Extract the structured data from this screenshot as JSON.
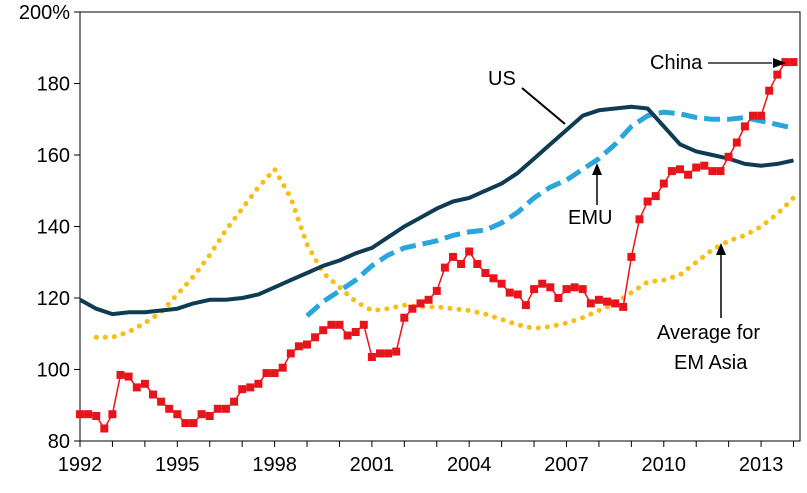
{
  "chart_data": {
    "type": "line",
    "x_tick_labels": [
      "1992",
      "1995",
      "1998",
      "2001",
      "2004",
      "2007",
      "2010",
      "2013"
    ],
    "y_tick_labels": [
      "80",
      "100",
      "120",
      "140",
      "160",
      "180",
      "200%"
    ],
    "xlim": [
      1992,
      2014.2
    ],
    "ylim": [
      80,
      200
    ],
    "grid": false,
    "series": [
      {
        "name": "US",
        "color": "#0f3b53",
        "style": "solid",
        "x": [
          1992,
          1992.5,
          1993,
          1993.5,
          1994,
          1994.5,
          1995,
          1995.5,
          1996,
          1996.5,
          1997,
          1997.5,
          1998,
          1998.5,
          1999,
          1999.5,
          2000,
          2000.5,
          2001,
          2001.5,
          2002,
          2002.5,
          2003,
          2003.5,
          2004,
          2004.5,
          2005,
          2005.5,
          2006,
          2006.5,
          2007,
          2007.5,
          2008,
          2008.5,
          2009,
          2009.5,
          2010,
          2010.5,
          2011,
          2011.5,
          2012,
          2012.5,
          2013,
          2013.5,
          2014
        ],
        "values": [
          119.5,
          117,
          115.5,
          116,
          116,
          116.5,
          117,
          118.5,
          119.5,
          119.5,
          120,
          121,
          123,
          125,
          127,
          129,
          130.5,
          132.5,
          134,
          137,
          140,
          142.5,
          145,
          147,
          148,
          150,
          152,
          155,
          159,
          163,
          167,
          171,
          172.5,
          173,
          173.5,
          173,
          168,
          163,
          161,
          160,
          159,
          157.5,
          157,
          157.5,
          158.5
        ]
      },
      {
        "name": "EMU",
        "color": "#2aa6dc",
        "style": "dashed",
        "x": [
          1999,
          1999.5,
          2000,
          2000.5,
          2001,
          2001.5,
          2002,
          2002.5,
          2003,
          2003.5,
          2004,
          2004.5,
          2005,
          2005.5,
          2006,
          2006.5,
          2007,
          2007.5,
          2008,
          2008.5,
          2009,
          2009.5,
          2010,
          2010.5,
          2011,
          2011.5,
          2012,
          2012.5,
          2013,
          2013.5,
          2014
        ],
        "values": [
          115,
          119,
          122,
          125,
          129,
          132,
          134,
          135,
          136,
          137.5,
          138.5,
          139,
          141,
          144,
          148,
          151,
          153,
          156,
          159,
          163,
          168,
          171,
          172,
          171.5,
          170.5,
          170,
          170,
          170.5,
          169.5,
          168.5,
          167.5
        ]
      },
      {
        "name": "China",
        "color": "#e8141b",
        "style": "solid-square-markers",
        "x": [
          1992,
          1992.25,
          1992.5,
          1992.75,
          1993,
          1993.25,
          1993.5,
          1993.75,
          1994,
          1994.25,
          1994.5,
          1994.75,
          1995,
          1995.25,
          1995.5,
          1995.75,
          1996,
          1996.25,
          1996.5,
          1996.75,
          1997,
          1997.25,
          1997.5,
          1997.75,
          1998,
          1998.25,
          1998.5,
          1998.75,
          1999,
          1999.25,
          1999.5,
          1999.75,
          2000,
          2000.25,
          2000.5,
          2000.75,
          2001,
          2001.25,
          2001.5,
          2001.75,
          2002,
          2002.25,
          2002.5,
          2002.75,
          2003,
          2003.25,
          2003.5,
          2003.75,
          2004,
          2004.25,
          2004.5,
          2004.75,
          2005,
          2005.25,
          2005.5,
          2005.75,
          2006,
          2006.25,
          2006.5,
          2006.75,
          2007,
          2007.25,
          2007.5,
          2007.75,
          2008,
          2008.25,
          2008.5,
          2008.75,
          2009,
          2009.25,
          2009.5,
          2009.75,
          2010,
          2010.25,
          2010.5,
          2010.75,
          2011,
          2011.25,
          2011.5,
          2011.75,
          2012,
          2012.25,
          2012.5,
          2012.75,
          2013,
          2013.25,
          2013.5,
          2013.75,
          2014
        ],
        "values": [
          87.5,
          87.5,
          87,
          83.5,
          87.5,
          98.5,
          98,
          95,
          96,
          93,
          91,
          89,
          87.5,
          85,
          85,
          87.5,
          87,
          89,
          89,
          91,
          94.5,
          95,
          96,
          99,
          99,
          100.5,
          104.5,
          106.5,
          107,
          109,
          111,
          112.5,
          112.5,
          109.5,
          110.5,
          112.5,
          103.5,
          104.5,
          104.5,
          105,
          114.5,
          117,
          118.5,
          119.5,
          122,
          128.5,
          131.5,
          129.5,
          133,
          129.5,
          127,
          125.5,
          124,
          121.5,
          121,
          118,
          122.5,
          124,
          123,
          120,
          122.5,
          123,
          122.5,
          118.5,
          119.5,
          119,
          118.5,
          117.5,
          131.5,
          142,
          147,
          148.5,
          152,
          155.5,
          156,
          154.5,
          156.5,
          157,
          155.5,
          155.5,
          159.5,
          163.5,
          168,
          171,
          171,
          178,
          182.5,
          186,
          186
        ]
      },
      {
        "name": "Average for EM Asia",
        "color": "#f5bf17",
        "style": "dotted",
        "x": [
          1992.5,
          1993,
          1993.5,
          1994,
          1994.5,
          1995,
          1995.5,
          1996,
          1996.5,
          1997,
          1997.5,
          1998,
          1998.5,
          1999,
          1999.5,
          2000,
          2000.5,
          2001,
          2001.5,
          2002,
          2002.5,
          2003,
          2003.5,
          2004,
          2004.5,
          2005,
          2005.5,
          2006,
          2006.5,
          2007,
          2007.5,
          2008,
          2008.5,
          2009,
          2009.5,
          2010,
          2010.5,
          2011,
          2011.5,
          2012,
          2012.5,
          2013,
          2013.5,
          2014
        ],
        "values": [
          109,
          109,
          110.5,
          113,
          116,
          121,
          126,
          132,
          139,
          145,
          151,
          156,
          148,
          135,
          127,
          123,
          119,
          116.5,
          117,
          118,
          117.5,
          117.5,
          117,
          116.5,
          115.5,
          114,
          112.5,
          111.5,
          112,
          113,
          114.5,
          116.5,
          118.5,
          121.5,
          124.5,
          125,
          126.5,
          130,
          133.5,
          136,
          137.5,
          140,
          143.5,
          148
        ]
      }
    ],
    "annotations": [
      {
        "text": "China"
      },
      {
        "text": "US"
      },
      {
        "text": "EMU"
      },
      {
        "text": "Average for"
      },
      {
        "text": "EM Asia"
      }
    ]
  }
}
